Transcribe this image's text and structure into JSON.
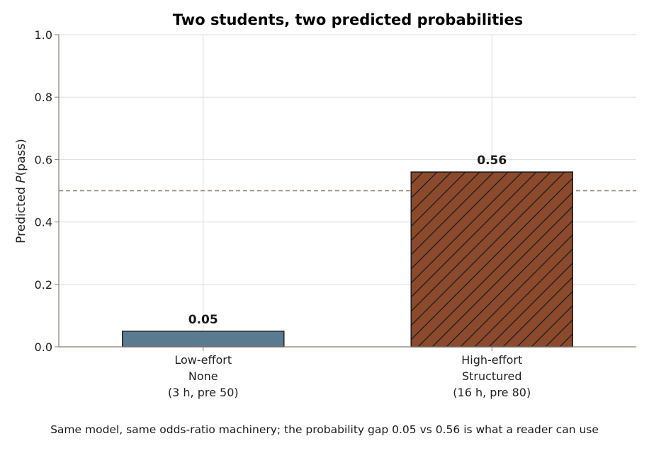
{
  "chart_data": {
    "type": "bar",
    "title": "Two students, two predicted probabilities",
    "ylabel_prefix": "Predicted ",
    "ylabel_var": "P",
    "ylabel_suffix": "(pass)",
    "ylim": [
      0,
      1.0
    ],
    "yticks": [
      "0.0",
      "0.2",
      "0.4",
      "0.6",
      "0.8",
      "1.0"
    ],
    "grid": true,
    "reference_line": 0.5,
    "categories": [
      [
        "Low-effort",
        "None",
        "(3 h, pre 50)"
      ],
      [
        "High-effort",
        "Structured",
        "(16 h, pre 80)"
      ]
    ],
    "values": [
      0.05,
      0.56
    ],
    "value_labels": [
      "0.05",
      "0.56"
    ],
    "colors": [
      "#5a7a8f",
      "#8b4a2b"
    ],
    "hatched": [
      false,
      true
    ]
  },
  "caption": "Same model, same odds-ratio machinery; the probability gap 0.05 vs 0.56 is what a reader can use"
}
